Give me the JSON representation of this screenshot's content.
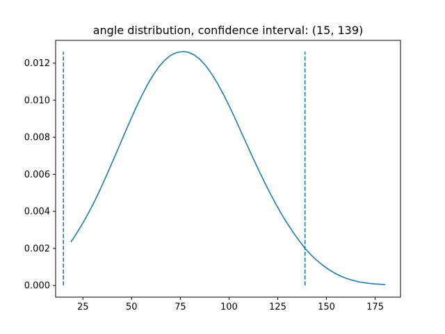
{
  "chart_data": {
    "type": "line",
    "title": "angle distribution, confidence interval:  (15, 139)",
    "xlabel": "",
    "ylabel": "",
    "xlim": [
      11,
      188
    ],
    "ylim": [
      -0.00063,
      0.01323
    ],
    "xticks": [
      25,
      50,
      75,
      100,
      125,
      150,
      175
    ],
    "yticks": [
      0.0,
      0.002,
      0.004,
      0.006,
      0.008,
      0.01,
      0.012
    ],
    "ytick_labels": [
      "0.000",
      "0.002",
      "0.004",
      "0.006",
      "0.008",
      "0.010",
      "0.012"
    ],
    "grid": false,
    "legend": "none",
    "series": [
      {
        "style": "solid",
        "color": "#1f77b4",
        "x": [
          19,
          22,
          25,
          28,
          31,
          34,
          37,
          40,
          43,
          46,
          49,
          52,
          55,
          58,
          61,
          64,
          67,
          70,
          73,
          76,
          77,
          79,
          82,
          85,
          88,
          91,
          94,
          97,
          100,
          103,
          106,
          109,
          112,
          115,
          118,
          121,
          124,
          127,
          130,
          133,
          136,
          139,
          142,
          145,
          148,
          151,
          154,
          157,
          160,
          163,
          166,
          169,
          172,
          175,
          180
        ],
        "y": [
          0.00237,
          0.00285,
          0.00337,
          0.00394,
          0.00455,
          0.00521,
          0.00591,
          0.00663,
          0.00736,
          0.0081,
          0.00883,
          0.00954,
          0.0102,
          0.01081,
          0.01135,
          0.0118,
          0.01216,
          0.01242,
          0.01257,
          0.01262,
          0.01262,
          0.01259,
          0.01245,
          0.01221,
          0.01187,
          0.01143,
          0.01092,
          0.01034,
          0.00971,
          0.00904,
          0.00834,
          0.00764,
          0.00695,
          0.00627,
          0.00562,
          0.00499,
          0.0044,
          0.00384,
          0.00333,
          0.00285,
          0.00242,
          0.002,
          0.00166,
          0.00136,
          0.0011,
          0.00087,
          0.00068,
          0.00052,
          0.00039,
          0.00029,
          0.00021,
          0.00015,
          0.00011,
          8e-05,
          5e-05
        ]
      },
      {
        "style": "dashed",
        "color": "#1f77b4",
        "x": [
          15,
          15
        ],
        "y": [
          0.0,
          0.01262
        ]
      },
      {
        "style": "dashed",
        "color": "#1f77b4",
        "x": [
          139,
          139
        ],
        "y": [
          0.0,
          0.01262
        ]
      }
    ]
  }
}
